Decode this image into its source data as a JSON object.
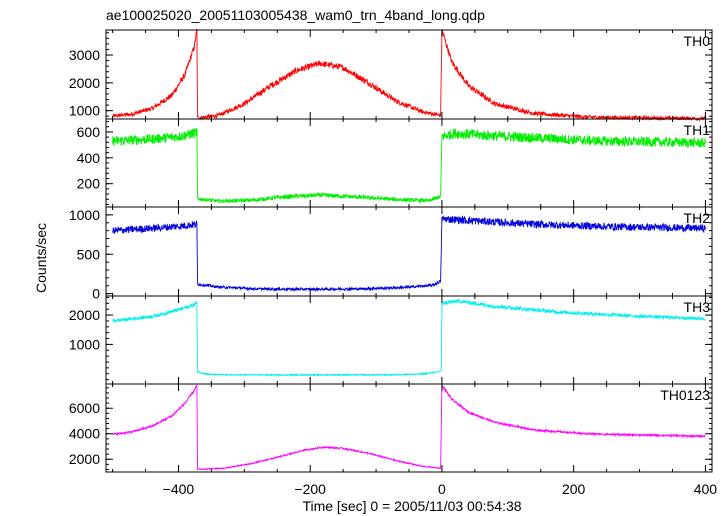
{
  "chart_data": {
    "type": "line",
    "title": "ae100025020_20051103005438_wam0_trn_4band_long.qdp",
    "xlabel": "Time [sec] 0 = 2005/11/03 00:54:38",
    "ylabel": "Counts/sec",
    "xlim": [
      -510,
      410
    ],
    "xticks": [
      -400,
      -200,
      0,
      200,
      400
    ],
    "grid": false,
    "panels": [
      {
        "name": "TH0",
        "color": "#ff0000",
        "ylim": [
          700,
          3900
        ],
        "yticks": [
          1000,
          2000,
          3000
        ],
        "points": [
          [
            -500,
            800
          ],
          [
            -470,
            880
          ],
          [
            -440,
            1080
          ],
          [
            -410,
            1550
          ],
          [
            -390,
            2300
          ],
          [
            -376,
            3300
          ],
          [
            -372,
            3900
          ],
          [
            -371,
            740
          ],
          [
            -340,
            820
          ],
          [
            -300,
            1250
          ],
          [
            -260,
            1900
          ],
          [
            -220,
            2450
          ],
          [
            -185,
            2700
          ],
          [
            -150,
            2550
          ],
          [
            -110,
            1980
          ],
          [
            -70,
            1350
          ],
          [
            -30,
            960
          ],
          [
            -2,
            830
          ],
          [
            0,
            3900
          ],
          [
            15,
            2750
          ],
          [
            40,
            1900
          ],
          [
            80,
            1250
          ],
          [
            140,
            900
          ],
          [
            220,
            770
          ],
          [
            300,
            740
          ],
          [
            400,
            720
          ]
        ],
        "noise": 70
      },
      {
        "name": "TH1",
        "color": "#00ee00",
        "ylim": [
          20,
          700
        ],
        "yticks": [
          200,
          400,
          600
        ],
        "points": [
          [
            -500,
            530
          ],
          [
            -440,
            545
          ],
          [
            -400,
            565
          ],
          [
            -376,
            590
          ],
          [
            -372,
            600
          ],
          [
            -371,
            85
          ],
          [
            -340,
            65
          ],
          [
            -290,
            72
          ],
          [
            -240,
            98
          ],
          [
            -185,
            112
          ],
          [
            -130,
            98
          ],
          [
            -70,
            78
          ],
          [
            -20,
            68
          ],
          [
            -2,
            100
          ],
          [
            0,
            565
          ],
          [
            20,
            590
          ],
          [
            60,
            575
          ],
          [
            140,
            555
          ],
          [
            240,
            530
          ],
          [
            400,
            515
          ]
        ],
        "noise": 38
      },
      {
        "name": "TH2",
        "color": "#0000dd",
        "ylim": [
          -30,
          1100
        ],
        "yticks": [
          0,
          500,
          1000
        ],
        "points": [
          [
            -500,
            800
          ],
          [
            -440,
            830
          ],
          [
            -400,
            855
          ],
          [
            -372,
            880
          ],
          [
            -371,
            120
          ],
          [
            -340,
            85
          ],
          [
            -280,
            60
          ],
          [
            -200,
            55
          ],
          [
            -120,
            62
          ],
          [
            -60,
            78
          ],
          [
            -15,
            105
          ],
          [
            -2,
            155
          ],
          [
            0,
            950
          ],
          [
            40,
            930
          ],
          [
            140,
            880
          ],
          [
            260,
            850
          ],
          [
            400,
            830
          ]
        ],
        "noise": 45
      },
      {
        "name": "TH3",
        "color": "#00eeee",
        "ylim": [
          -350,
          2650
        ],
        "yticks": [
          1000,
          2000
        ],
        "points": [
          [
            -500,
            1800
          ],
          [
            -440,
            1950
          ],
          [
            -405,
            2150
          ],
          [
            -385,
            2280
          ],
          [
            -372,
            2400
          ],
          [
            -371,
            60
          ],
          [
            -355,
            -20
          ],
          [
            -320,
            -40
          ],
          [
            -200,
            -40
          ],
          [
            -80,
            -38
          ],
          [
            -30,
            -10
          ],
          [
            -5,
            60
          ],
          [
            -1,
            120
          ],
          [
            0,
            2400
          ],
          [
            25,
            2480
          ],
          [
            80,
            2300
          ],
          [
            180,
            2100
          ],
          [
            300,
            1960
          ],
          [
            400,
            1880
          ]
        ],
        "noise": 55
      },
      {
        "name": "TH0123",
        "color": "#ff00ff",
        "ylim": [
          1000,
          7900
        ],
        "yticks": [
          2000,
          4000,
          6000
        ],
        "points": [
          [
            -500,
            3950
          ],
          [
            -470,
            4150
          ],
          [
            -440,
            4600
          ],
          [
            -410,
            5400
          ],
          [
            -390,
            6400
          ],
          [
            -376,
            7400
          ],
          [
            -372,
            7800
          ],
          [
            -371,
            1200
          ],
          [
            -330,
            1300
          ],
          [
            -290,
            1650
          ],
          [
            -250,
            2150
          ],
          [
            -210,
            2700
          ],
          [
            -180,
            2950
          ],
          [
            -150,
            2850
          ],
          [
            -110,
            2450
          ],
          [
            -70,
            1900
          ],
          [
            -30,
            1450
          ],
          [
            -2,
            1300
          ],
          [
            0,
            7800
          ],
          [
            15,
            6700
          ],
          [
            40,
            5700
          ],
          [
            80,
            4900
          ],
          [
            140,
            4300
          ],
          [
            220,
            4000
          ],
          [
            300,
            3900
          ],
          [
            400,
            3800
          ]
        ],
        "noise": 70
      }
    ]
  }
}
